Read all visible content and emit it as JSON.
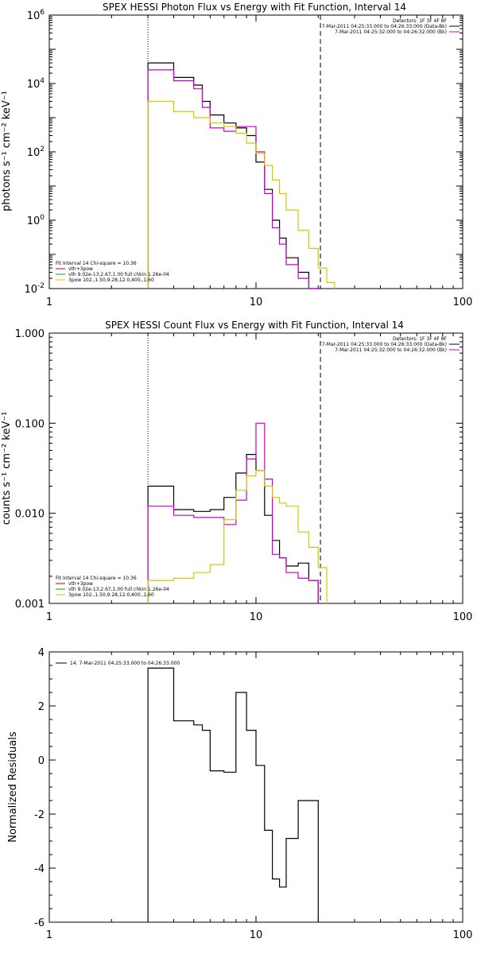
{
  "chart_data": [
    {
      "type": "line",
      "title": "SPEX HESSI Photon Flux vs Energy with Fit Function, Interval 14",
      "ylabel": "photons s⁻¹ cm⁻² keV⁻¹",
      "xlabel": "",
      "xscale": "log",
      "yscale": "log",
      "xlim": [
        1,
        100
      ],
      "ylim": [
        0.01,
        1000000
      ],
      "x_ticks": [
        {
          "v": 1,
          "label": "1"
        },
        {
          "v": 10,
          "label": "10"
        },
        {
          "v": 100,
          "label": "100"
        }
      ],
      "y_ticks": [
        {
          "v": 0.01,
          "label": "10",
          "exp": "-2"
        },
        {
          "v": 1,
          "label": "10",
          "exp": "0"
        },
        {
          "v": 100,
          "label": "10",
          "exp": "2"
        },
        {
          "v": 10000,
          "label": "10",
          "exp": "4"
        },
        {
          "v": 1000000,
          "label": "10",
          "exp": "6"
        }
      ],
      "vlines": [
        {
          "x": 3,
          "style": "dotted"
        },
        {
          "x": 20.5,
          "style": "dashed"
        }
      ],
      "legend_top": [
        {
          "text": "Detectors: 1F 3F 4F 8F",
          "color": "#000000"
        },
        {
          "text": "7-Mar-2011 04:25:33.000 to 04:26:33.000 (Data-Bk)",
          "color": "#000000"
        },
        {
          "text": "7-Mar-2011 04:25:32.000 to 04:26:32.000 (Bk)",
          "color": "#cc00cc"
        }
      ],
      "legend_bottom": [
        {
          "text": "Fit Interval 14   Chi-square = 10.36",
          "color": "#000000"
        },
        {
          "text": "vth+3pow",
          "color": "#cc0000"
        },
        {
          "text": "vth 9.02e-13,2.67,1.00  full chkin 1.26e-04",
          "color": "#00aa00"
        },
        {
          "text": "3pow 102.,1.50,9.28,12.0,400.,1.60",
          "color": "#d4c800"
        }
      ],
      "series": [
        {
          "color": "#000000",
          "edges": [
            3,
            4,
            5,
            5.5,
            6,
            7,
            8,
            9,
            10,
            11,
            12,
            13,
            14,
            16,
            18,
            20
          ],
          "values": [
            40000,
            15000,
            9000,
            3000,
            1200,
            700,
            500,
            300,
            50,
            8,
            1,
            0.3,
            0.08,
            0.03,
            0.008
          ]
        },
        {
          "color": "#cc00cc",
          "edges": [
            3,
            4,
            5,
            5.5,
            6,
            7,
            8,
            9,
            10,
            11,
            12,
            13,
            14,
            16,
            18,
            20
          ],
          "values": [
            25000,
            12000,
            7000,
            2000,
            500,
            400,
            550,
            550,
            100,
            6,
            0.6,
            0.2,
            0.05,
            0.02,
            0.006
          ]
        },
        {
          "color": "#d4c800",
          "edges": [
            3,
            4,
            5,
            6,
            7,
            8,
            9,
            10,
            11,
            12,
            13,
            14,
            16,
            18,
            20,
            22,
            24
          ],
          "values": [
            3000,
            1500,
            1000,
            700,
            550,
            350,
            180,
            90,
            40,
            15,
            6,
            2,
            0.5,
            0.15,
            0.04,
            0.015
          ]
        }
      ]
    },
    {
      "type": "line",
      "title": "SPEX HESSI Count Flux vs Energy with Fit Function, Interval 14",
      "ylabel": "counts s⁻¹ cm⁻² keV⁻¹",
      "xlabel": "",
      "xscale": "log",
      "yscale": "log",
      "xlim": [
        1,
        100
      ],
      "ylim": [
        0.001,
        1.0
      ],
      "x_ticks": [
        {
          "v": 1,
          "label": "1"
        },
        {
          "v": 10,
          "label": "10"
        },
        {
          "v": 100,
          "label": "100"
        }
      ],
      "y_ticks": [
        {
          "v": 0.001,
          "label": "0.001"
        },
        {
          "v": 0.01,
          "label": "0.010"
        },
        {
          "v": 0.1,
          "label": "0.100"
        },
        {
          "v": 1.0,
          "label": "1.000"
        }
      ],
      "vlines": [
        {
          "x": 3,
          "style": "dotted"
        },
        {
          "x": 20.5,
          "style": "dashed"
        }
      ],
      "legend_top": [
        {
          "text": "Detectors: 1F 3F 4F 8F",
          "color": "#000000"
        },
        {
          "text": "7-Mar-2011 04:25:33.000 to 04:26:33.000 (Data-Bk)",
          "color": "#000000"
        },
        {
          "text": "7-Mar-2011 04:25:32.000 to 04:26:32.000 (Bk)",
          "color": "#cc00cc"
        }
      ],
      "legend_bottom": [
        {
          "text": "Fit Interval 14   Chi-square = 10.36",
          "color": "#000000"
        },
        {
          "text": "vth+3pow",
          "color": "#cc0000"
        },
        {
          "text": "vth 9.02e-13,2.67,1.00  full chkin 1.26e-04",
          "color": "#00aa00"
        },
        {
          "text": "3pow 102.,1.50,9.28,12.0,400.,1.60",
          "color": "#d4c800"
        }
      ],
      "series": [
        {
          "color": "#000000",
          "edges": [
            3,
            4,
            5,
            6,
            7,
            8,
            9,
            10,
            11,
            12,
            13,
            14,
            16,
            18,
            20
          ],
          "values": [
            0.02,
            0.011,
            0.0105,
            0.011,
            0.015,
            0.028,
            0.045,
            0.03,
            0.0095,
            0.005,
            0.0032,
            0.0026,
            0.0028,
            0.0018
          ]
        },
        {
          "color": "#cc00cc",
          "edges": [
            3,
            4,
            5,
            6,
            7,
            8,
            9,
            10,
            11,
            12,
            13,
            14,
            16,
            18,
            20
          ],
          "values": [
            0.012,
            0.0095,
            0.009,
            0.009,
            0.0075,
            0.014,
            0.04,
            0.1,
            0.024,
            0.0035,
            0.0032,
            0.0022,
            0.0019,
            0.0018
          ]
        },
        {
          "color": "#d4c800",
          "edges": [
            3,
            4,
            5,
            6,
            7,
            8,
            9,
            10,
            11,
            12,
            13,
            14,
            16,
            18,
            20,
            22
          ],
          "values": [
            0.0018,
            0.0019,
            0.0022,
            0.0027,
            0.0085,
            0.018,
            0.026,
            0.03,
            0.02,
            0.015,
            0.013,
            0.012,
            0.0062,
            0.0042,
            0.0025
          ]
        }
      ]
    },
    {
      "type": "line",
      "title": "",
      "ylabel": "Normalized Residuals",
      "xlabel": "",
      "xscale": "log",
      "yscale": "linear",
      "xlim": [
        1,
        100
      ],
      "ylim": [
        -6,
        4
      ],
      "x_ticks": [
        {
          "v": 1,
          "label": "1"
        },
        {
          "v": 10,
          "label": "10"
        },
        {
          "v": 100,
          "label": "100"
        }
      ],
      "y_ticks": [
        {
          "v": -6,
          "label": "-6"
        },
        {
          "v": -4,
          "label": "-4"
        },
        {
          "v": -2,
          "label": "-2"
        },
        {
          "v": 0,
          "label": "0"
        },
        {
          "v": 2,
          "label": "2"
        },
        {
          "v": 4,
          "label": "4"
        }
      ],
      "vlines": [],
      "legend_top": [
        {
          "text": "14.  7-Mar-2011 04:25:33.000 to 04:26:33.000",
          "color": "#000000"
        }
      ],
      "legend_bottom": [],
      "series": [
        {
          "color": "#000000",
          "edges": [
            3,
            4,
            5,
            5.5,
            6,
            7,
            8,
            9,
            10,
            11,
            12,
            13,
            14,
            16,
            18,
            20
          ],
          "values": [
            3.4,
            1.45,
            1.3,
            1.1,
            -0.4,
            -0.45,
            2.5,
            1.1,
            -0.2,
            -2.6,
            -4.4,
            -4.7,
            -2.9,
            -1.5,
            -1.5
          ]
        }
      ]
    }
  ]
}
